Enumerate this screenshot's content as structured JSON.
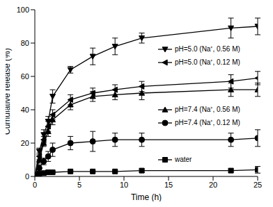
{
  "chart_data": {
    "type": "line",
    "xlabel": "Time (h)",
    "ylabel": "Cumulative release (%)",
    "x": [
      0,
      0.5,
      1,
      1.5,
      2,
      4,
      6.5,
      9,
      12,
      22,
      25
    ],
    "xlim": [
      0,
      25
    ],
    "xticks": [
      0,
      5,
      10,
      15,
      20,
      25
    ],
    "ylim": [
      0,
      100
    ],
    "yticks": [
      0,
      20,
      40,
      60,
      80,
      100
    ],
    "grid": false,
    "series": [
      {
        "name": "pH=5.0 (Na⁺, 0.56 M)",
        "color": "#000000",
        "marker": "triangle-down",
        "values": [
          0,
          15,
          25,
          33,
          48,
          64,
          72,
          78,
          83,
          89,
          90
        ],
        "errors": [
          0,
          2,
          3,
          3,
          4,
          2,
          5,
          5,
          3,
          6,
          5
        ]
      },
      {
        "name": "pH=5.0 (Na⁺, 0.12 M)",
        "color": "#000000",
        "marker": "triangle-left",
        "values": [
          0,
          12,
          22,
          30,
          37,
          46,
          50,
          52,
          54,
          57,
          59
        ],
        "errors": [
          0,
          2,
          2,
          3,
          3,
          3,
          3,
          3,
          3,
          4,
          4
        ]
      },
      {
        "name": "pH=7.4 (Na⁺, 0.56 M)",
        "color": "#000000",
        "marker": "triangle-up",
        "values": [
          0,
          10,
          20,
          27,
          34,
          43,
          48,
          49,
          50,
          52,
          52
        ],
        "errors": [
          0,
          2,
          2,
          3,
          3,
          3,
          3,
          3,
          4,
          4,
          4
        ]
      },
      {
        "name": "pH=7.4 (Na⁺, 0.12 M)",
        "color": "#000000",
        "marker": "circle",
        "values": [
          0,
          5,
          9,
          12,
          16,
          20,
          21,
          22,
          22,
          22,
          23
        ],
        "errors": [
          0,
          2,
          2,
          3,
          4,
          4,
          6,
          4,
          4,
          4,
          5
        ]
      },
      {
        "name": "water",
        "color": "#000000",
        "marker": "square",
        "values": [
          0,
          1.5,
          2,
          2.5,
          2.5,
          3,
          3,
          3,
          3.5,
          3.5,
          4
        ],
        "errors": [
          0,
          0.5,
          0.5,
          0.5,
          0.5,
          0.5,
          0.5,
          0.5,
          1,
          1,
          2
        ]
      }
    ]
  }
}
